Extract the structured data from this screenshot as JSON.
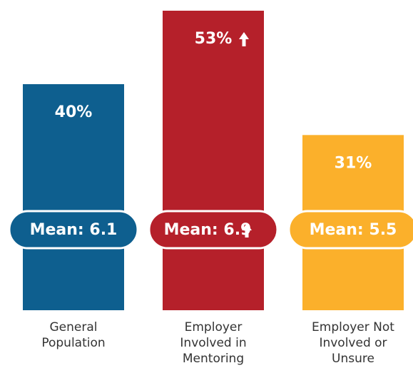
{
  "chart_data": {
    "type": "bar",
    "categories": [
      "General Population",
      "Employer Involved in Mentoring",
      "Employer Not Involved or Unsure"
    ],
    "values": [
      40,
      53,
      31
    ],
    "value_labels": [
      "40%",
      "53%",
      "31%"
    ],
    "colors": [
      "#0e5f8f",
      "#b5202a",
      "#fbb02b"
    ],
    "means": [
      6.1,
      6.9,
      5.5
    ],
    "mean_labels": [
      "Mean: 6.1",
      "Mean: 6.9",
      "Mean: 5.5"
    ]
  }
}
